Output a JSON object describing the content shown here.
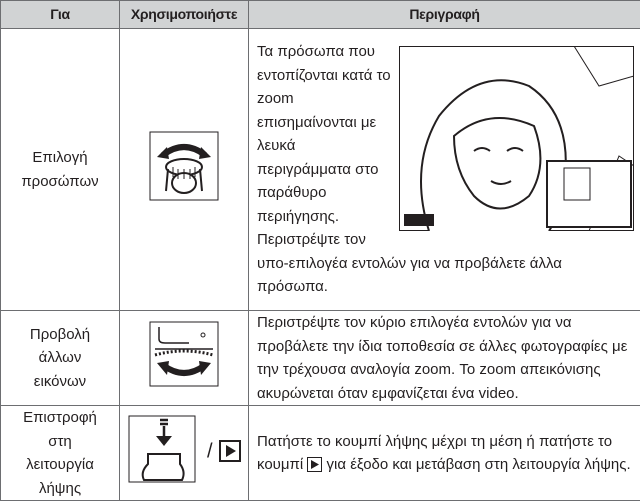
{
  "table": {
    "header": [
      "Για",
      "Χρησιμοποιήστε",
      "Περιγραφή"
    ],
    "rows": [
      {
        "for": "Επιλογή προσώπων",
        "description": [
          "Τα πρόσωπα που εντοπίζονται κατά το zoom επισημαίνονται με λευκά περιγράμματα στο παράθυρο περιήγησης.",
          "Περιστρέψτε τον υπο-επιλογέα εντολών για να προβάλετε άλλα πρόσωπα."
        ]
      },
      {
        "for": "Προβολή άλλων εικόνων",
        "description": [
          "Περιστρέψτε τον κύριο επιλογέα εντολών για να προβάλετε την ίδια τοποθεσία σε άλλες φωτογραφίες με την τρέχουσα αναλογία zoom. Το zoom απεικόνισης ακυρώνεται όταν εμφανίζεται ένα video."
        ]
      },
      {
        "for": "Επιστροφή στη λειτουργία λήψης",
        "separator": "/",
        "description": [
          "Πατήστε το κουμπί λήψης μέχρι τη μέση ή πατήστε το κουμπί",
          "για έξοδο και μετάβαση στη λειτουργία λήψης."
        ]
      }
    ]
  }
}
